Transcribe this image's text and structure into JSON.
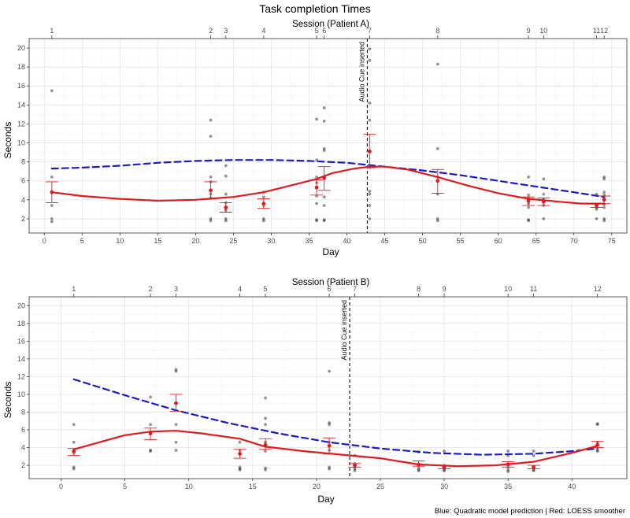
{
  "title": "Task completion Times",
  "caption": "Blue: Quadratic model prediction | Red: LOESS smoother",
  "chart_data": [
    {
      "type": "scatter",
      "panel": "Patient A",
      "secondary_title": "Session (Patient A)",
      "xlabel": "Day",
      "ylabel": "Seconds",
      "xlim": [
        -2,
        77
      ],
      "ylim": [
        0.5,
        21
      ],
      "x_ticks": [
        0,
        5,
        10,
        15,
        20,
        25,
        30,
        35,
        40,
        45,
        50,
        55,
        60,
        65,
        70,
        75
      ],
      "y_ticks": [
        2,
        4,
        6,
        8,
        10,
        12,
        14,
        16,
        18,
        20
      ],
      "sessions": [
        {
          "label": "1",
          "day": 1
        },
        {
          "label": "2",
          "day": 22
        },
        {
          "label": "3",
          "day": 24
        },
        {
          "label": "4",
          "day": 29
        },
        {
          "label": "5",
          "day": 36
        },
        {
          "label": "6",
          "day": 37
        },
        {
          "label": "7",
          "day": 43
        },
        {
          "label": "8",
          "day": 52
        },
        {
          "label": "9",
          "day": 64
        },
        {
          "label": "10",
          "day": 66
        },
        {
          "label": "11",
          "day": 73
        },
        {
          "label": "12",
          "day": 74
        }
      ],
      "intervention": {
        "day": 42.7,
        "label": "Audio Cue inserted"
      },
      "raw_points": [
        {
          "day": 1,
          "values": [
            15.5,
            6.4,
            3.4,
            2.0,
            1.7
          ]
        },
        {
          "day": 22,
          "values": [
            12.4,
            10.7,
            6.4,
            5.9,
            4.6,
            4.2,
            2.0,
            1.8
          ]
        },
        {
          "day": 24,
          "values": [
            7.6,
            6.5,
            4.6,
            3.7,
            2.9,
            2.0,
            1.8
          ]
        },
        {
          "day": 29,
          "values": [
            4.8,
            4.3,
            3.4,
            2.0,
            1.8
          ]
        },
        {
          "day": 36,
          "values": [
            12.5,
            8.2,
            6.4,
            5.8,
            4.4,
            3.6,
            1.9,
            1.8
          ]
        },
        {
          "day": 37,
          "values": [
            13.7,
            12.3,
            9.4,
            9.2,
            6.4,
            4.3,
            3.4,
            1.9,
            1.8
          ]
        },
        {
          "day": 43,
          "values": [
            19.9,
            18.7,
            14.2,
            12.4,
            7.4,
            4.9,
            4.6,
            3.4,
            2.0
          ]
        },
        {
          "day": 52,
          "values": [
            18.3,
            9.4,
            6.4,
            6.0,
            4.6,
            2.0,
            1.8
          ]
        },
        {
          "day": 64,
          "values": [
            6.4,
            4.5,
            4.2,
            3.6,
            3.2,
            1.9,
            1.8
          ]
        },
        {
          "day": 66,
          "values": [
            6.2,
            4.6,
            4.1,
            3.4,
            2.0
          ]
        },
        {
          "day": 73,
          "values": [
            4.6,
            3.5,
            3.2,
            3.0,
            2.0
          ]
        },
        {
          "day": 74,
          "values": [
            6.4,
            6.2,
            4.8,
            4.5,
            4.2,
            3.5,
            3.2,
            2.0,
            1.8
          ]
        }
      ],
      "means": [
        {
          "day": 1,
          "mean": 4.8,
          "low": 3.7,
          "high": 5.9
        },
        {
          "day": 22,
          "mean": 5.0,
          "low": 4.1,
          "high": 5.9
        },
        {
          "day": 24,
          "mean": 3.2,
          "low": 2.7,
          "high": 3.7
        },
        {
          "day": 29,
          "mean": 3.6,
          "low": 3.1,
          "high": 4.1
        },
        {
          "day": 36,
          "mean": 5.3,
          "low": 4.5,
          "high": 6.1
        },
        {
          "day": 37,
          "mean": 6.3,
          "low": 5.0,
          "high": 7.5
        },
        {
          "day": 43,
          "mean": 9.1,
          "low": 7.4,
          "high": 10.9
        },
        {
          "day": 52,
          "mean": 6.0,
          "low": 4.7,
          "high": 7.2
        },
        {
          "day": 64,
          "mean": 3.9,
          "low": 3.4,
          "high": 4.3
        },
        {
          "day": 66,
          "mean": 3.8,
          "low": 3.4,
          "high": 4.2
        },
        {
          "day": 73,
          "mean": 3.4,
          "low": 3.2,
          "high": 3.6
        },
        {
          "day": 74,
          "mean": 4.0,
          "low": 3.6,
          "high": 4.4
        }
      ],
      "series": [
        {
          "name": "Quadratic model prediction",
          "style": "dashed",
          "color": "#1a1acc",
          "x": [
            1,
            5,
            10,
            15,
            20,
            25,
            30,
            35,
            40,
            45,
            50,
            55,
            60,
            65,
            70,
            74
          ],
          "y": [
            7.3,
            7.4,
            7.6,
            7.9,
            8.1,
            8.2,
            8.2,
            8.1,
            7.9,
            7.5,
            7.1,
            6.6,
            6.0,
            5.4,
            4.8,
            4.3
          ]
        },
        {
          "name": "LOESS smoother",
          "style": "solid",
          "color": "#e31a1c",
          "x": [
            1,
            5,
            10,
            15,
            20,
            25,
            29,
            33,
            36,
            38,
            41,
            43,
            45,
            48,
            52,
            56,
            60,
            64,
            68,
            71,
            74
          ],
          "y": [
            4.8,
            4.4,
            4.1,
            3.9,
            4.0,
            4.3,
            4.8,
            5.6,
            6.2,
            6.8,
            7.3,
            7.5,
            7.5,
            7.2,
            6.4,
            5.5,
            4.7,
            4.1,
            3.8,
            3.6,
            3.6
          ]
        }
      ]
    },
    {
      "type": "scatter",
      "panel": "Patient B",
      "secondary_title": "Session (Patient B)",
      "xlabel": "Day",
      "ylabel": "Seconds",
      "xlim": [
        -2.5,
        44.3
      ],
      "ylim": [
        0.5,
        21
      ],
      "x_ticks": [
        0,
        5,
        10,
        15,
        20,
        25,
        30,
        35,
        40,
        45
      ],
      "y_ticks": [
        2,
        4,
        6,
        8,
        10,
        12,
        14,
        16,
        18,
        20
      ],
      "sessions": [
        {
          "label": "1",
          "day": 1
        },
        {
          "label": "2",
          "day": 7
        },
        {
          "label": "3",
          "day": 9
        },
        {
          "label": "4",
          "day": 14
        },
        {
          "label": "5",
          "day": 16
        },
        {
          "label": "6",
          "day": 21
        },
        {
          "label": "7",
          "day": 23
        },
        {
          "label": "8",
          "day": 28
        },
        {
          "label": "9",
          "day": 30
        },
        {
          "label": "10",
          "day": 35
        },
        {
          "label": "11",
          "day": 37
        },
        {
          "label": "12",
          "day": 42
        }
      ],
      "intervention": {
        "day": 22.6,
        "label": "Audio Cue inserted"
      },
      "raw_points": [
        {
          "day": 1,
          "values": [
            6.6,
            4.6,
            3.4,
            1.8,
            1.6
          ]
        },
        {
          "day": 7,
          "values": [
            9.7,
            6.6,
            5.7,
            3.7,
            3.6
          ]
        },
        {
          "day": 9,
          "values": [
            12.8,
            12.6,
            6.6,
            4.6,
            3.7
          ]
        },
        {
          "day": 14,
          "values": [
            4.6,
            3.7,
            1.8,
            1.6,
            1.5
          ]
        },
        {
          "day": 16,
          "values": [
            9.6,
            7.3,
            6.6,
            4.6,
            3.6,
            1.7,
            1.5
          ]
        },
        {
          "day": 21,
          "values": [
            12.6,
            6.8,
            6.6,
            4.6,
            3.7,
            1.8,
            1.6
          ]
        },
        {
          "day": 23,
          "values": [
            3.1,
            2.2,
            1.8,
            1.6,
            1.4
          ]
        },
        {
          "day": 28,
          "values": [
            3.5,
            2.0,
            1.7,
            1.5,
            1.4
          ]
        },
        {
          "day": 30,
          "values": [
            3.6,
            2.0,
            1.7,
            1.5,
            1.4
          ]
        },
        {
          "day": 35,
          "values": [
            3.6,
            3.1,
            1.8,
            1.5,
            1.3
          ]
        },
        {
          "day": 37,
          "values": [
            3.6,
            3.1,
            1.8,
            1.5,
            1.4
          ]
        },
        {
          "day": 42,
          "values": [
            6.7,
            6.6,
            4.6,
            3.7,
            3.6
          ]
        }
      ],
      "means": [
        {
          "day": 1,
          "mean": 3.6,
          "low": 3.1,
          "high": 3.9
        },
        {
          "day": 7,
          "mean": 5.6,
          "low": 4.9,
          "high": 6.2
        },
        {
          "day": 9,
          "mean": 9.0,
          "low": 8.1,
          "high": 10.0
        },
        {
          "day": 14,
          "mean": 3.3,
          "low": 2.8,
          "high": 3.8
        },
        {
          "day": 16,
          "mean": 4.3,
          "low": 3.8,
          "high": 5.0
        },
        {
          "day": 21,
          "mean": 4.2,
          "low": 3.3,
          "high": 5.1
        },
        {
          "day": 23,
          "mean": 2.0,
          "low": 1.8,
          "high": 2.2
        },
        {
          "day": 28,
          "mean": 2.1,
          "low": 1.9,
          "high": 2.5
        },
        {
          "day": 30,
          "mean": 1.8,
          "low": 1.6,
          "high": 2.0
        },
        {
          "day": 35,
          "mean": 2.1,
          "low": 1.8,
          "high": 2.4
        },
        {
          "day": 37,
          "mean": 1.8,
          "low": 1.6,
          "high": 2.0
        },
        {
          "day": 42,
          "mean": 4.3,
          "low": 4.0,
          "high": 4.7
        }
      ],
      "series": [
        {
          "name": "Quadratic model prediction",
          "style": "dashed",
          "color": "#1a1acc",
          "x": [
            1,
            5,
            9,
            13,
            17,
            21,
            25,
            29,
            33,
            37,
            40,
            42
          ],
          "y": [
            11.7,
            9.9,
            8.2,
            6.8,
            5.6,
            4.6,
            3.9,
            3.4,
            3.2,
            3.3,
            3.6,
            3.9
          ]
        },
        {
          "name": "LOESS smoother",
          "style": "solid",
          "color": "#e31a1c",
          "x": [
            1,
            3,
            5,
            7,
            9,
            11,
            14,
            16,
            19,
            22,
            25,
            28,
            31,
            34,
            37,
            40,
            42
          ],
          "y": [
            3.8,
            4.6,
            5.4,
            5.8,
            5.9,
            5.6,
            5.0,
            4.1,
            3.6,
            3.2,
            2.8,
            2.1,
            1.9,
            2.0,
            2.4,
            3.4,
            4.2
          ]
        }
      ]
    }
  ]
}
